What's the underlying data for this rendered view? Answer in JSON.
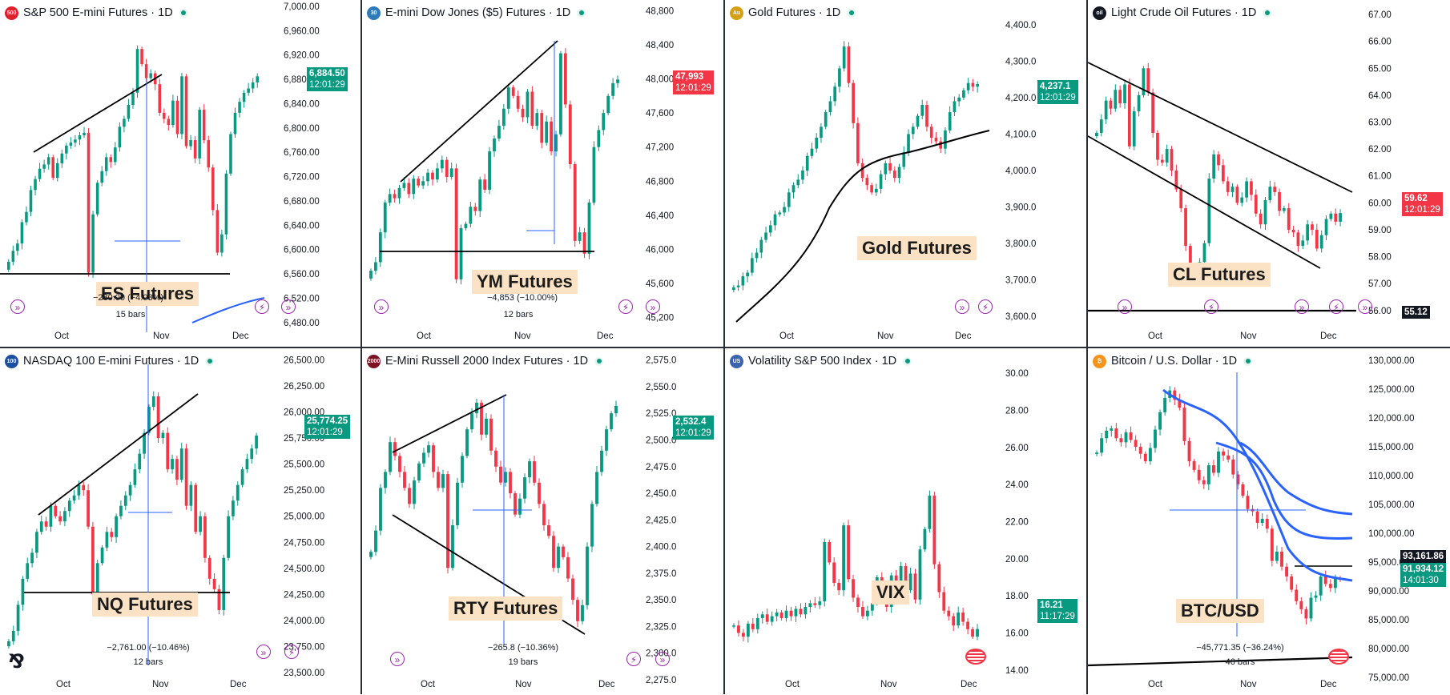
{
  "layout": {
    "panel_order": [
      "es",
      "ym",
      "gc",
      "cl",
      "nq",
      "rty",
      "vix",
      "btc"
    ]
  },
  "colors": {
    "up": "#089981",
    "down": "#f23645",
    "line": "#000000",
    "measure": "#2962ff",
    "annotation_bg": "#fbe2c4",
    "accent": "#9c27b0"
  },
  "panels": {
    "es": {
      "title": "S&P 500 E-mini Futures · 1D",
      "icon_text": "500",
      "icon_color": "#e3202a",
      "annotation": "ES Futures",
      "price_badge": {
        "price": "6,884.50",
        "time": "12:01:29",
        "color": "#089981"
      },
      "measure_text": "−280.00 (−4.03%)",
      "measure_bars": "15 bars"
    },
    "ym": {
      "title": "E-mini Dow Jones ($5) Futures · 1D",
      "icon_text": "30",
      "icon_color": "#2f7ab8",
      "annotation": "YM Futures",
      "price_badge": {
        "price": "47,993",
        "time": "12:01:29",
        "color": "#f23645"
      },
      "measure_text": "−4,853 (−10.00%)",
      "measure_bars": "12 bars"
    },
    "gc": {
      "title": "Gold Futures · 1D",
      "icon_text": "Au",
      "icon_color": "#d4a017",
      "annotation": "Gold Futures",
      "price_badge": {
        "price": "4,237.1",
        "time": "12:01:29",
        "color": "#089981"
      }
    },
    "cl": {
      "title": "Light Crude Oil Futures · 1D",
      "icon_text": "oil",
      "icon_color": "#131722",
      "annotation": "CL Futures",
      "price_badge": {
        "price": "59.62",
        "time": "12:01:29",
        "color": "#f23645"
      },
      "line_badge": "55.12"
    },
    "nq": {
      "title": "NASDAQ 100 E-mini Futures · 1D",
      "icon_text": "100",
      "icon_color": "#1e4ea0",
      "annotation": "NQ Futures",
      "price_badge": {
        "price": "25,774.25",
        "time": "12:01:29",
        "color": "#089981"
      },
      "measure_text": "−2,761.00 (−10.46%)",
      "measure_bars": "12 bars"
    },
    "rty": {
      "title": "E-Mini Russell 2000 Index Futures · 1D",
      "icon_text": "2000",
      "icon_color": "#7a1422",
      "annotation": "RTY Futures",
      "price_badge": {
        "price": "2,532.4",
        "time": "12:01:29",
        "color": "#089981"
      },
      "measure_text": "−265.8 (−10.36%)",
      "measure_bars": "19 bars"
    },
    "vix": {
      "title": "Volatility S&P 500 Index · 1D",
      "icon_text": "US",
      "icon_color": "#3c63ae",
      "annotation": "VIX",
      "price_badge": {
        "price": "16.21",
        "time": "11:17:29",
        "color": "#089981"
      }
    },
    "btc": {
      "title": "Bitcoin / U.S. Dollar · 1D",
      "icon_text": "₿",
      "icon_color": "#f7931a",
      "annotation": "BTC/USD",
      "price_badge": {
        "price": "91,934.12",
        "time": "14:01:30",
        "color": "#089981"
      },
      "line_badge": "93,161.86",
      "measure_text": "−45,771.35 (−36.24%)",
      "measure_bars": "46 bars"
    }
  },
  "chart_data": [
    {
      "id": "es",
      "type": "candlestick",
      "ylim": [
        6460,
        7000
      ],
      "yticks": [
        "7,000.00",
        "6,960.00",
        "6,920.00",
        "6,880.00",
        "6,840.00",
        "6,800.00",
        "6,760.00",
        "6,720.00",
        "6,680.00",
        "6,640.00",
        "6,600.00",
        "6,560.00",
        "6,520.00",
        "6,480.00"
      ],
      "xticks": [
        "Oct",
        "Nov",
        "Dec"
      ],
      "closes": [
        6580,
        6598,
        6610,
        6645,
        6662,
        6698,
        6716,
        6733,
        6740,
        6752,
        6718,
        6742,
        6758,
        6771,
        6776,
        6781,
        6788,
        6792,
        6562,
        6658,
        6710,
        6729,
        6752,
        6744,
        6768,
        6802,
        6815,
        6838,
        6858,
        6930,
        6905,
        6882,
        6890,
        6872,
        6825,
        6815,
        6805,
        6845,
        6790,
        6885,
        6770,
        6780,
        6750,
        6830,
        6780,
        6735,
        6665,
        6595,
        6625,
        6725,
        6790,
        6825,
        6843,
        6858,
        6865,
        6875,
        6885
      ]
    },
    {
      "id": "ym",
      "type": "candlestick",
      "ylim": [
        45000,
        48850
      ],
      "yticks": [
        "48,800",
        "48,400",
        "48,000",
        "47,600",
        "47,200",
        "46,800",
        "46,400",
        "46,000",
        "45,600",
        "45,200"
      ],
      "xticks": [
        "Oct",
        "Nov",
        "Dec"
      ],
      "closes": [
        45750,
        45850,
        46200,
        46550,
        46650,
        46600,
        46720,
        46780,
        46650,
        46830,
        46750,
        46800,
        46900,
        46820,
        46950,
        47050,
        46850,
        46950,
        45650,
        46250,
        46300,
        46500,
        46450,
        46820,
        46700,
        47150,
        47300,
        47450,
        47650,
        47900,
        47800,
        47650,
        47550,
        47850,
        47450,
        47600,
        47250,
        47500,
        47150,
        47350,
        48300,
        47700,
        47000,
        46100,
        46200,
        45950,
        46550,
        47200,
        47400,
        47600,
        47800,
        47950,
        47993
      ]
    },
    {
      "id": "gc",
      "type": "candlestick",
      "ylim": [
        3550,
        4450
      ],
      "yticks": [
        "4,400.0",
        "4,300.0",
        "4,200.0",
        "4,100.0",
        "4,000.0",
        "3,900.0",
        "3,800.0",
        "3,700.0",
        "3,600.0"
      ],
      "xticks": [
        "Oct",
        "Nov",
        "Dec"
      ],
      "closes": [
        3680,
        3685,
        3710,
        3720,
        3760,
        3775,
        3810,
        3830,
        3850,
        3880,
        3885,
        3900,
        3940,
        3960,
        3975,
        4000,
        4040,
        4060,
        4090,
        4120,
        4160,
        4190,
        4230,
        4280,
        4340,
        4240,
        4130,
        4020,
        3980,
        3960,
        3940,
        3950,
        3990,
        4020,
        4000,
        3980,
        4010,
        4050,
        4100,
        4120,
        4150,
        4180,
        4120,
        4090,
        4080,
        4060,
        4110,
        4160,
        4190,
        4200,
        4220,
        4240,
        4230,
        4237
      ]
    },
    {
      "id": "cl",
      "type": "candlestick",
      "ylim": [
        55.1,
        67.3
      ],
      "yticks": [
        "67.00",
        "66.00",
        "65.00",
        "64.00",
        "63.00",
        "62.00",
        "61.00",
        "60.00",
        "59.00",
        "58.00",
        "57.00",
        "56.00"
      ],
      "xticks": [
        "Oct",
        "Nov",
        "Dec"
      ],
      "closes": [
        62.6,
        63.1,
        63.8,
        63.5,
        64.2,
        63.7,
        64.4,
        62.1,
        63.4,
        64.0,
        65.0,
        64.1,
        62.6,
        61.6,
        61.5,
        62.0,
        61.2,
        60.5,
        59.8,
        58.4,
        57.4,
        57.2,
        57.8,
        58.5,
        60.9,
        61.8,
        61.4,
        60.8,
        60.4,
        60.6,
        60.0,
        60.2,
        60.8,
        60.3,
        59.6,
        59.2,
        60.1,
        60.6,
        60.4,
        59.7,
        59.8,
        59.0,
        58.9,
        58.4,
        58.6,
        59.2,
        59.0,
        58.3,
        58.8,
        59.4,
        59.6,
        59.3,
        59.62
      ]
    },
    {
      "id": "nq",
      "type": "candlestick",
      "ylim": [
        23400,
        26550
      ],
      "yticks": [
        "26,500.00",
        "26,250.00",
        "26,000.00",
        "25,750.00",
        "25,500.00",
        "25,250.00",
        "25,000.00",
        "24,750.00",
        "24,500.00",
        "24,250.00",
        "24,000.00",
        "23,750.00",
        "23,500.00"
      ],
      "xticks": [
        "Oct",
        "Nov",
        "Dec"
      ],
      "closes": [
        23800,
        23900,
        24150,
        24400,
        24550,
        24650,
        24850,
        24950,
        24900,
        25100,
        25000,
        24950,
        25050,
        25150,
        25200,
        25300,
        25250,
        24900,
        24250,
        24550,
        24700,
        24850,
        24800,
        25000,
        25100,
        25200,
        25300,
        25450,
        25600,
        25800,
        26050,
        26150,
        25750,
        25800,
        25450,
        25550,
        25350,
        25650,
        25100,
        25300,
        24850,
        25000,
        24600,
        24400,
        24300,
        24100,
        24600,
        25000,
        25150,
        25300,
        25450,
        25550,
        25650,
        25774
      ]
    },
    {
      "id": "rty",
      "type": "candlestick",
      "ylim": [
        2272,
        2580
      ],
      "yticks": [
        "2,575.0",
        "2,550.0",
        "2,525.0",
        "2,500.0",
        "2,475.0",
        "2,450.0",
        "2,425.0",
        "2,400.0",
        "2,375.0",
        "2,350.0",
        "2,325.0",
        "2,300.0",
        "2,275.0"
      ],
      "xticks": [
        "Oct",
        "Nov",
        "Dec"
      ],
      "closes": [
        2395,
        2415,
        2455,
        2470,
        2498,
        2485,
        2470,
        2455,
        2440,
        2462,
        2478,
        2488,
        2495,
        2470,
        2455,
        2468,
        2380,
        2420,
        2460,
        2485,
        2510,
        2525,
        2535,
        2505,
        2520,
        2490,
        2475,
        2460,
        2470,
        2450,
        2430,
        2445,
        2465,
        2480,
        2460,
        2440,
        2420,
        2410,
        2380,
        2400,
        2390,
        2370,
        2350,
        2330,
        2345,
        2400,
        2440,
        2470,
        2490,
        2510,
        2525,
        2532
      ]
    },
    {
      "id": "vix",
      "type": "candlestick",
      "ylim": [
        13.3,
        31
      ],
      "yticks": [
        "30.00",
        "28.00",
        "26.00",
        "24.00",
        "22.00",
        "20.00",
        "18.00",
        "16.00",
        "14.00"
      ],
      "xticks": [
        "Oct",
        "Nov",
        "Dec"
      ],
      "closes": [
        16.4,
        16.0,
        15.8,
        16.5,
        16.2,
        16.8,
        17.0,
        16.6,
        16.9,
        17.1,
        16.8,
        17.2,
        16.9,
        17.3,
        17.0,
        17.4,
        17.6,
        17.5,
        17.7,
        20.9,
        19.8,
        18.7,
        18.3,
        21.8,
        18.9,
        17.9,
        17.4,
        16.9,
        17.2,
        17.6,
        19.0,
        18.1,
        17.4,
        19.1,
        18.6,
        19.6,
        18.3,
        19.2,
        17.8,
        20.5,
        21.6,
        23.4,
        19.7,
        18.2,
        17.2,
        16.9,
        16.4,
        17.1,
        16.6,
        16.2,
        15.8,
        16.21
      ]
    },
    {
      "id": "btc",
      "type": "candlestick",
      "ylim": [
        74000,
        131000
      ],
      "yticks": [
        "130,000.00",
        "125,000.00",
        "120,000.00",
        "115,000.00",
        "110,000.00",
        "105,000.00",
        "100,000.00",
        "95,000.00",
        "90,000.00",
        "85,000.00",
        "80,000.00",
        "75,000.00"
      ],
      "xticks": [
        "Oct",
        "Nov",
        "Dec"
      ],
      "closes": [
        114000,
        116500,
        117800,
        118200,
        116500,
        115800,
        117500,
        116200,
        115000,
        113800,
        112500,
        114800,
        118000,
        121000,
        123500,
        124800,
        123200,
        121800,
        116000,
        112500,
        111000,
        109200,
        108500,
        111800,
        110500,
        114200,
        113500,
        112800,
        110200,
        108500,
        106500,
        104200,
        103800,
        101800,
        102500,
        100800,
        95200,
        96800,
        94200,
        92500,
        90200,
        88200,
        86800,
        85200,
        88800,
        89200,
        92500,
        91200,
        90500,
        92200,
        91934
      ]
    }
  ]
}
